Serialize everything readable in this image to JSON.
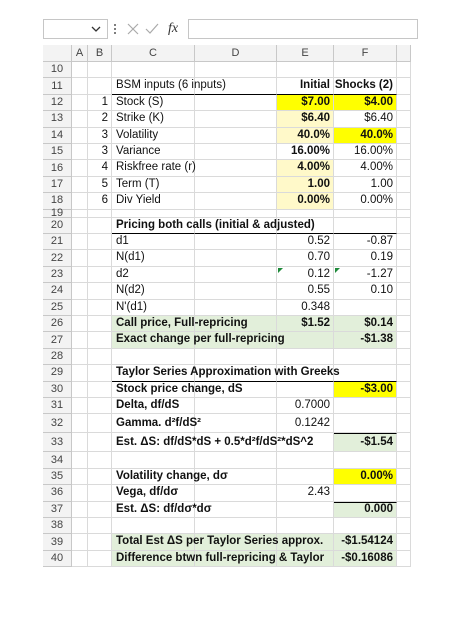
{
  "toolbar": {
    "fx": "fx"
  },
  "columns": [
    "A",
    "B",
    "C",
    "D",
    "E",
    "F"
  ],
  "rows": [
    {
      "number": "10",
      "cells": {}
    },
    {
      "number": "11",
      "cells": {
        "C": "BSM inputs (6 inputs)",
        "E": "Initial",
        "F": "Shocks (2)"
      }
    },
    {
      "number": "12",
      "cells": {
        "B": "1",
        "C": "Stock (S)",
        "E": "$7.00",
        "F": "$4.00"
      }
    },
    {
      "number": "13",
      "cells": {
        "B": "2",
        "C": "Strike (K)",
        "E": "$6.40",
        "F": "$6.40"
      }
    },
    {
      "number": "14",
      "cells": {
        "B": "3",
        "C": "Volatility",
        "E": "40.0%",
        "F": "40.0%"
      }
    },
    {
      "number": "15",
      "cells": {
        "B": "3",
        "C": "Variance",
        "E": "16.00%",
        "F": "16.00%"
      }
    },
    {
      "number": "16",
      "cells": {
        "B": "4",
        "C": "Riskfree rate (r)",
        "E": "4.00%",
        "F": "4.00%"
      }
    },
    {
      "number": "17",
      "cells": {
        "B": "5",
        "C": "Term (T)",
        "E": "1.00",
        "F": "1.00"
      }
    },
    {
      "number": "18",
      "cells": {
        "B": "6",
        "C": "Div Yield",
        "E": "0.00%",
        "F": "0.00%"
      }
    },
    {
      "number": "19",
      "cells": {}
    },
    {
      "number": "20",
      "cells": {
        "C": "Pricing both calls (initial & adjusted)"
      }
    },
    {
      "number": "21",
      "cells": {
        "C": "d1",
        "E": "0.52",
        "F": "-0.87"
      }
    },
    {
      "number": "22",
      "cells": {
        "C": "N(d1)",
        "E": "0.70",
        "F": "0.19"
      }
    },
    {
      "number": "23",
      "cells": {
        "C": "d2",
        "E": "0.12",
        "F": "-1.27"
      }
    },
    {
      "number": "24",
      "cells": {
        "C": "N(d2)",
        "E": "0.55",
        "F": "0.10"
      }
    },
    {
      "number": "25",
      "cells": {
        "C": "N'(d1)",
        "E": "0.348"
      }
    },
    {
      "number": "26",
      "cells": {
        "C": "Call price, Full-repricing",
        "E": "$1.52",
        "F": "$0.14"
      }
    },
    {
      "number": "27",
      "cells": {
        "C": "Exact change per full-repricing",
        "F": "-$1.38"
      }
    },
    {
      "number": "28",
      "cells": {}
    },
    {
      "number": "29",
      "cells": {
        "C": "Taylor Series Approximation with Greeks"
      }
    },
    {
      "number": "30",
      "cells": {
        "C": "Stock price change, dS",
        "F": "-$3.00"
      }
    },
    {
      "number": "31",
      "cells": {
        "C": "Delta, df/dS",
        "E": "0.7000"
      }
    },
    {
      "number": "32",
      "cells": {
        "C": "Gamma. d²f/dS²",
        "E": "0.1242"
      }
    },
    {
      "number": "33",
      "cells": {
        "C": "Est. ΔS: df/dS*dS + 0.5*d²f/dS²*dS^2",
        "F": "-$1.54"
      }
    },
    {
      "number": "34",
      "cells": {}
    },
    {
      "number": "35",
      "cells": {
        "C": "Volatility change, dσ",
        "F": "0.00%"
      }
    },
    {
      "number": "36",
      "cells": {
        "C": "Vega, df/dσ",
        "E": "2.43"
      }
    },
    {
      "number": "37",
      "cells": {
        "C": "Est. ΔS: df/dσ*dσ",
        "F": "0.000"
      }
    },
    {
      "number": "38",
      "cells": {}
    },
    {
      "number": "39",
      "cells": {
        "C": "Total Est ΔS per Taylor Series approx.",
        "F": "-$1.54124"
      }
    },
    {
      "number": "40",
      "cells": {
        "C": "Difference btwn full-repricing & Taylor",
        "F": "-$0.16086"
      }
    }
  ]
}
